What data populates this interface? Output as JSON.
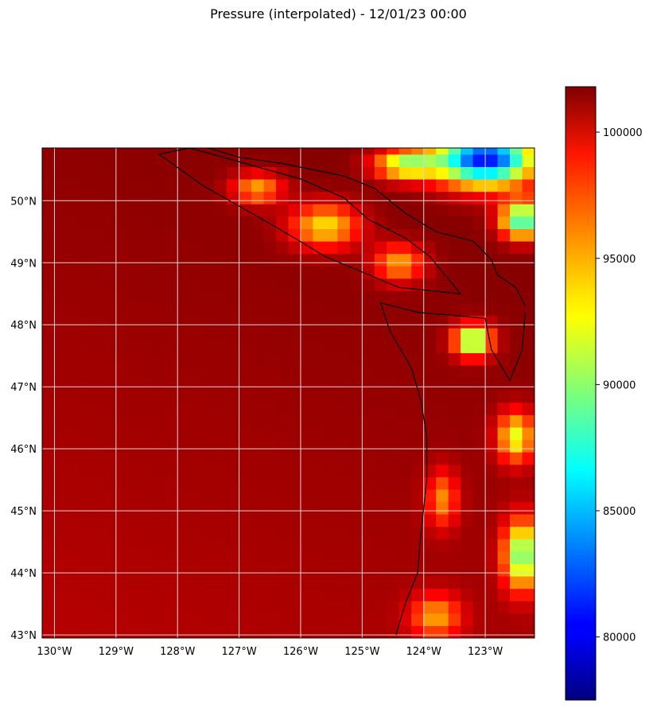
{
  "title": "Pressure (interpolated) - 12/01/23 00:00",
  "chart_data": {
    "type": "heatmap",
    "title": "Pressure (interpolated) - 12/01/23 00:00",
    "colormap": "jet",
    "map_extent": {
      "lon": [
        -130.2,
        -122.2
      ],
      "lat": [
        42.95,
        50.85
      ]
    },
    "x_ticks": [
      {
        "value": -130,
        "label": "130°W"
      },
      {
        "value": -129,
        "label": "129°W"
      },
      {
        "value": -128,
        "label": "128°W"
      },
      {
        "value": -127,
        "label": "127°W"
      },
      {
        "value": -126,
        "label": "126°W"
      },
      {
        "value": -125,
        "label": "125°W"
      },
      {
        "value": -124,
        "label": "124°W"
      },
      {
        "value": -123,
        "label": "123°W"
      }
    ],
    "y_ticks": [
      {
        "value": 50,
        "label": "50°N"
      },
      {
        "value": 49,
        "label": "49°N"
      },
      {
        "value": 48,
        "label": "48°N"
      },
      {
        "value": 47,
        "label": "47°N"
      },
      {
        "value": 46,
        "label": "46°N"
      },
      {
        "value": 45,
        "label": "45°N"
      },
      {
        "value": 44,
        "label": "44°N"
      },
      {
        "value": 43,
        "label": "43°N"
      }
    ],
    "grid": true,
    "colorbar": {
      "range": [
        77500,
        101800
      ],
      "ticks": [
        {
          "value": 100000,
          "label": "100000"
        },
        {
          "value": 95000,
          "label": "95000"
        },
        {
          "value": 90000,
          "label": "90000"
        },
        {
          "value": 85000,
          "label": "85000"
        },
        {
          "value": 80000,
          "label": "80000"
        }
      ]
    },
    "ocean_pressure": 101200,
    "field_features": [
      {
        "lon": -125.6,
        "lat": 49.6,
        "sx": 0.55,
        "sy": 0.35,
        "value": 93000
      },
      {
        "lon": -126.7,
        "lat": 50.2,
        "sx": 0.4,
        "sy": 0.25,
        "value": 94500
      },
      {
        "lon": -124.4,
        "lat": 49.0,
        "sx": 0.4,
        "sy": 0.3,
        "value": 94500
      },
      {
        "lon": -123.2,
        "lat": 47.75,
        "sx": 0.3,
        "sy": 0.25,
        "value": 88000
      },
      {
        "lon": -123.0,
        "lat": 50.7,
        "sx": 0.8,
        "sy": 0.45,
        "value": 80000
      },
      {
        "lon": -122.4,
        "lat": 49.7,
        "sx": 0.35,
        "sy": 0.3,
        "value": 87000
      },
      {
        "lon": -122.5,
        "lat": 46.2,
        "sx": 0.3,
        "sy": 0.4,
        "value": 92000
      },
      {
        "lon": -122.4,
        "lat": 44.3,
        "sx": 0.3,
        "sy": 0.55,
        "value": 89000
      },
      {
        "lon": -123.7,
        "lat": 45.2,
        "sx": 0.25,
        "sy": 0.45,
        "value": 95500
      },
      {
        "lon": -123.8,
        "lat": 43.3,
        "sx": 0.4,
        "sy": 0.35,
        "value": 95000
      },
      {
        "lon": -124.3,
        "lat": 50.6,
        "sx": 0.5,
        "sy": 0.25,
        "value": 91000
      }
    ],
    "coastline": [
      [
        -124.45,
        43.0
      ],
      [
        -124.3,
        43.5
      ],
      [
        -124.1,
        44.0
      ],
      [
        -124.05,
        44.6
      ],
      [
        -123.95,
        45.5
      ],
      [
        -123.95,
        46.2
      ],
      [
        -124.05,
        46.8
      ],
      [
        -124.2,
        47.3
      ],
      [
        -124.55,
        47.9
      ],
      [
        -124.7,
        48.35
      ],
      [
        -124.1,
        48.2
      ],
      [
        -123.5,
        48.15
      ],
      [
        -123.0,
        48.1
      ],
      [
        -122.9,
        47.6
      ],
      [
        -122.6,
        47.1
      ],
      [
        -122.4,
        47.6
      ],
      [
        -122.35,
        48.2
      ]
    ],
    "vancouver_island": [
      [
        -124.4,
        48.6
      ],
      [
        -125.0,
        48.85
      ],
      [
        -125.6,
        49.1
      ],
      [
        -126.1,
        49.4
      ],
      [
        -126.8,
        49.8
      ],
      [
        -127.6,
        50.25
      ],
      [
        -128.3,
        50.75
      ],
      [
        -127.8,
        50.85
      ],
      [
        -126.9,
        50.6
      ],
      [
        -126.0,
        50.35
      ],
      [
        -125.3,
        50.05
      ],
      [
        -124.9,
        49.7
      ],
      [
        -124.3,
        49.4
      ],
      [
        -123.9,
        49.1
      ],
      [
        -123.4,
        48.5
      ],
      [
        -124.4,
        48.6
      ]
    ],
    "mainland_coast": [
      [
        -127.5,
        50.85
      ],
      [
        -127.0,
        50.7
      ],
      [
        -126.3,
        50.6
      ],
      [
        -125.3,
        50.4
      ],
      [
        -124.8,
        50.2
      ],
      [
        -124.3,
        49.8
      ],
      [
        -123.8,
        49.5
      ],
      [
        -123.2,
        49.35
      ],
      [
        -122.9,
        49.05
      ],
      [
        -122.8,
        48.8
      ],
      [
        -122.5,
        48.6
      ],
      [
        -122.35,
        48.3
      ]
    ]
  }
}
